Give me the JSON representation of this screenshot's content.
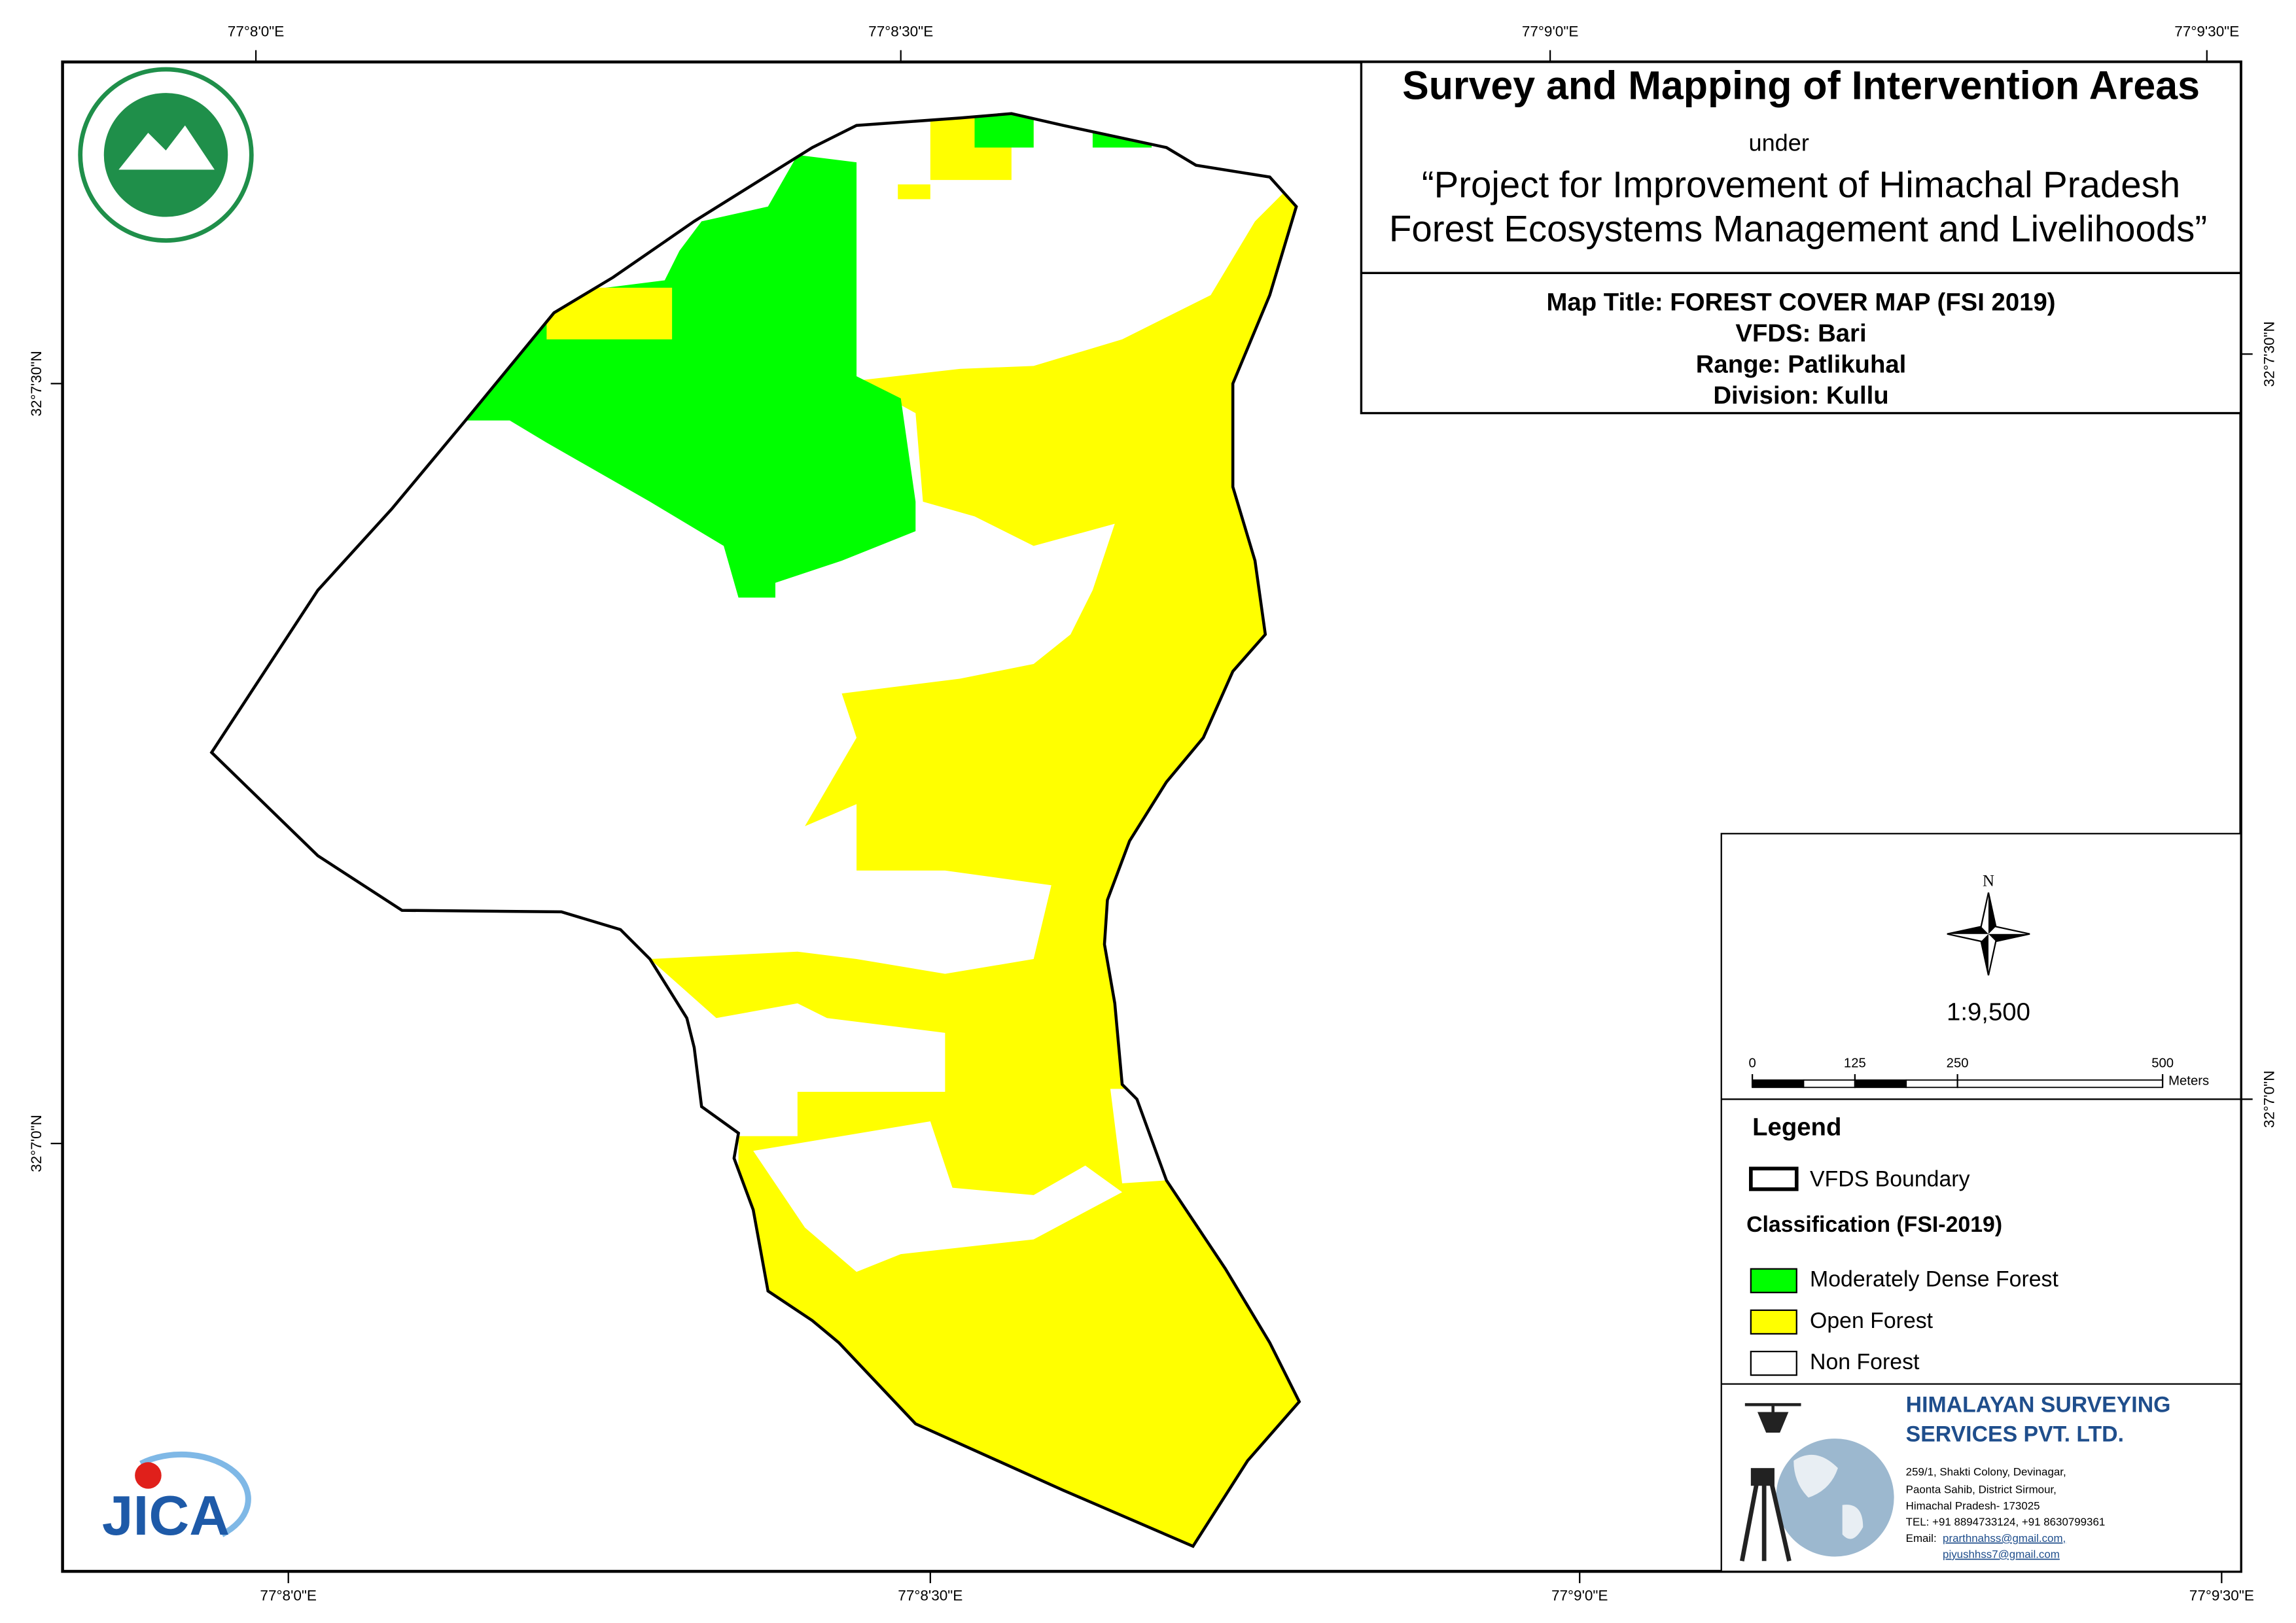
{
  "header": {
    "title": "Survey and Mapping of Intervention Areas",
    "under": "under",
    "project_lines": [
      "“Project for Improvement of Himachal Pradesh",
      "Forest Ecosystems Management and Livelihoods”"
    ]
  },
  "map_info": [
    "Map Title: FOREST COVER MAP (FSI 2019)",
    "VFDS: Bari",
    "Range: Patlikuhal",
    "Division: Kullu"
  ],
  "coordinates": {
    "top": [
      "77°8'0\"E",
      "77°8'30\"E",
      "77°9'0\"E",
      "77°9'30\"E"
    ],
    "bottom": [
      "77°8'0\"E",
      "77°8'30\"E",
      "77°9'0\"E",
      "77°9'30\"E"
    ],
    "left": [
      "32°7'30\"N",
      "32°7'0\"N"
    ],
    "right": [
      "32°7'30\"N",
      "32°7'0\"N"
    ]
  },
  "north_arrow": "N",
  "scale": "1:9,500",
  "scale_bar": {
    "ticks": [
      0,
      125,
      250,
      500
    ],
    "unit": "Meters"
  },
  "legend": {
    "title": "Legend",
    "boundary": "VFDS Boundary",
    "classification_title": "Classification (FSI-2019)",
    "classes": [
      {
        "name": "Moderately Dense Forest",
        "color": "#00ff00"
      },
      {
        "name": "Open Forest",
        "color": "#ffff00"
      },
      {
        "name": "Non Forest",
        "color": "#ffffff"
      }
    ]
  },
  "jica_logo": "JICA",
  "company": {
    "name_lines": [
      "HIMALAYAN SURVEYING",
      "SERVICES PVT. LTD."
    ],
    "address_lines": [
      "259/1, Shakti Colony, Devinagar,",
      "Paonta Sahib, District Sirmour,",
      "Himachal Pradesh- 173025",
      "TEL: +91 8894733124, +91 8630799361"
    ],
    "email_label": "Email:",
    "emails": [
      "prarthnahss@gmail.com,",
      "piyushhss7@gmail.com"
    ]
  }
}
